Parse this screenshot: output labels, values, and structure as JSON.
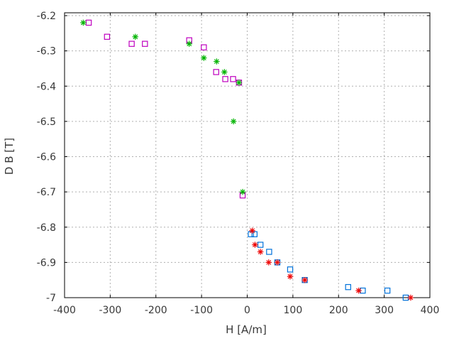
{
  "chart_data": {
    "type": "scatter",
    "title": "",
    "xlabel": "H [A/m]",
    "ylabel": "D B [T]",
    "xlim": [
      -400,
      400
    ],
    "ylim": [
      -7.0,
      -6.2
    ],
    "grid": true,
    "legend_position": "none",
    "x_tick_values": [
      -400,
      -300,
      -200,
      -100,
      0,
      100,
      200,
      300,
      400
    ],
    "x_tick_labels": [
      "-400",
      "-300",
      "-200",
      "-100",
      "0",
      "100",
      "200",
      "300",
      "400"
    ],
    "y_tick_values": [
      -6.2,
      -6.3,
      -6.4,
      -6.5,
      -6.6,
      -6.7,
      -6.8,
      -6.9,
      -7.0
    ],
    "y_tick_labels": [
      "-6.2",
      "-6.3",
      "-6.4",
      "-6.5",
      "-6.6",
      "-6.7",
      "-6.8",
      "-6.9",
      "-7"
    ],
    "series": [
      {
        "name": "magenta-open-squares",
        "marker": "open-square",
        "color": "#bf00bf",
        "points": [
          [
            -347,
            -6.22
          ],
          [
            -307,
            -6.26
          ],
          [
            -253,
            -6.28
          ],
          [
            -224,
            -6.28
          ],
          [
            -127,
            -6.27
          ],
          [
            -95,
            -6.29
          ],
          [
            -68,
            -6.36
          ],
          [
            -48,
            -6.38
          ],
          [
            -31,
            -6.38
          ],
          [
            -18,
            -6.39
          ],
          [
            -10,
            -6.71
          ]
        ]
      },
      {
        "name": "green-asterisks",
        "marker": "asterisk",
        "color": "#00b400",
        "points": [
          [
            -359,
            -6.22
          ],
          [
            -245,
            -6.26
          ],
          [
            -127,
            -6.28
          ],
          [
            -95,
            -6.32
          ],
          [
            -67,
            -6.33
          ],
          [
            -50,
            -6.36
          ],
          [
            -30,
            -6.5
          ],
          [
            -18,
            -6.39
          ],
          [
            -10,
            -6.7
          ]
        ]
      },
      {
        "name": "blue-open-squares",
        "marker": "open-square",
        "color": "#0072db",
        "points": [
          [
            8,
            -6.82
          ],
          [
            16,
            -6.82
          ],
          [
            29,
            -6.85
          ],
          [
            48,
            -6.87
          ],
          [
            66,
            -6.9
          ],
          [
            94,
            -6.92
          ],
          [
            126,
            -6.95
          ],
          [
            221,
            -6.97
          ],
          [
            253,
            -6.98
          ],
          [
            307,
            -6.98
          ],
          [
            347,
            -7.0
          ]
        ]
      },
      {
        "name": "red-asterisks",
        "marker": "asterisk",
        "color": "#ee0000",
        "points": [
          [
            11,
            -6.81
          ],
          [
            17,
            -6.85
          ],
          [
            29,
            -6.87
          ],
          [
            47,
            -6.9
          ],
          [
            66,
            -6.9
          ],
          [
            94,
            -6.94
          ],
          [
            126,
            -6.95
          ],
          [
            244,
            -6.98
          ],
          [
            358,
            -7.0
          ]
        ]
      }
    ]
  },
  "style": {
    "border_color": "#000000",
    "grid_color": "#b0b0b0",
    "text_color": "#383838",
    "background": "#ffffff"
  }
}
